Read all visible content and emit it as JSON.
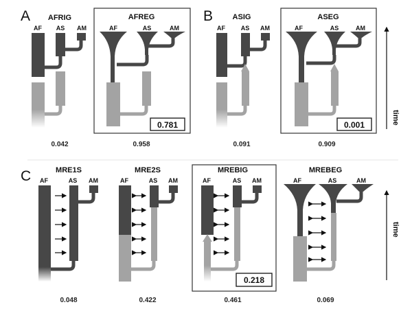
{
  "panels": {
    "a": "A",
    "b": "B",
    "c": "C"
  },
  "lineage_labels": {
    "af": "AF",
    "as": "AS",
    "am": "AM"
  },
  "axis": {
    "label": "time"
  },
  "models": {
    "afrig": {
      "title": "AFRIG",
      "weight": "0.042"
    },
    "afreg": {
      "title": "AFREG",
      "weight": "0.958",
      "score": "0.781"
    },
    "asig": {
      "title": "ASIG",
      "weight": "0.091"
    },
    "aseg": {
      "title": "ASEG",
      "weight": "0.909",
      "score": "0.001"
    },
    "mre1s": {
      "title": "MRE1S",
      "weight": "0.048"
    },
    "mre2s": {
      "title": "MRE2S",
      "weight": "0.422"
    },
    "mrebig": {
      "title": "MREBIG",
      "weight": "0.461",
      "score": "0.218"
    },
    "mrebeg": {
      "title": "MREBEG",
      "weight": "0.069"
    }
  },
  "colors": {
    "dark": "#474747",
    "light": "#a3a3a3",
    "arrow": "#111111",
    "frame": "#333333"
  }
}
